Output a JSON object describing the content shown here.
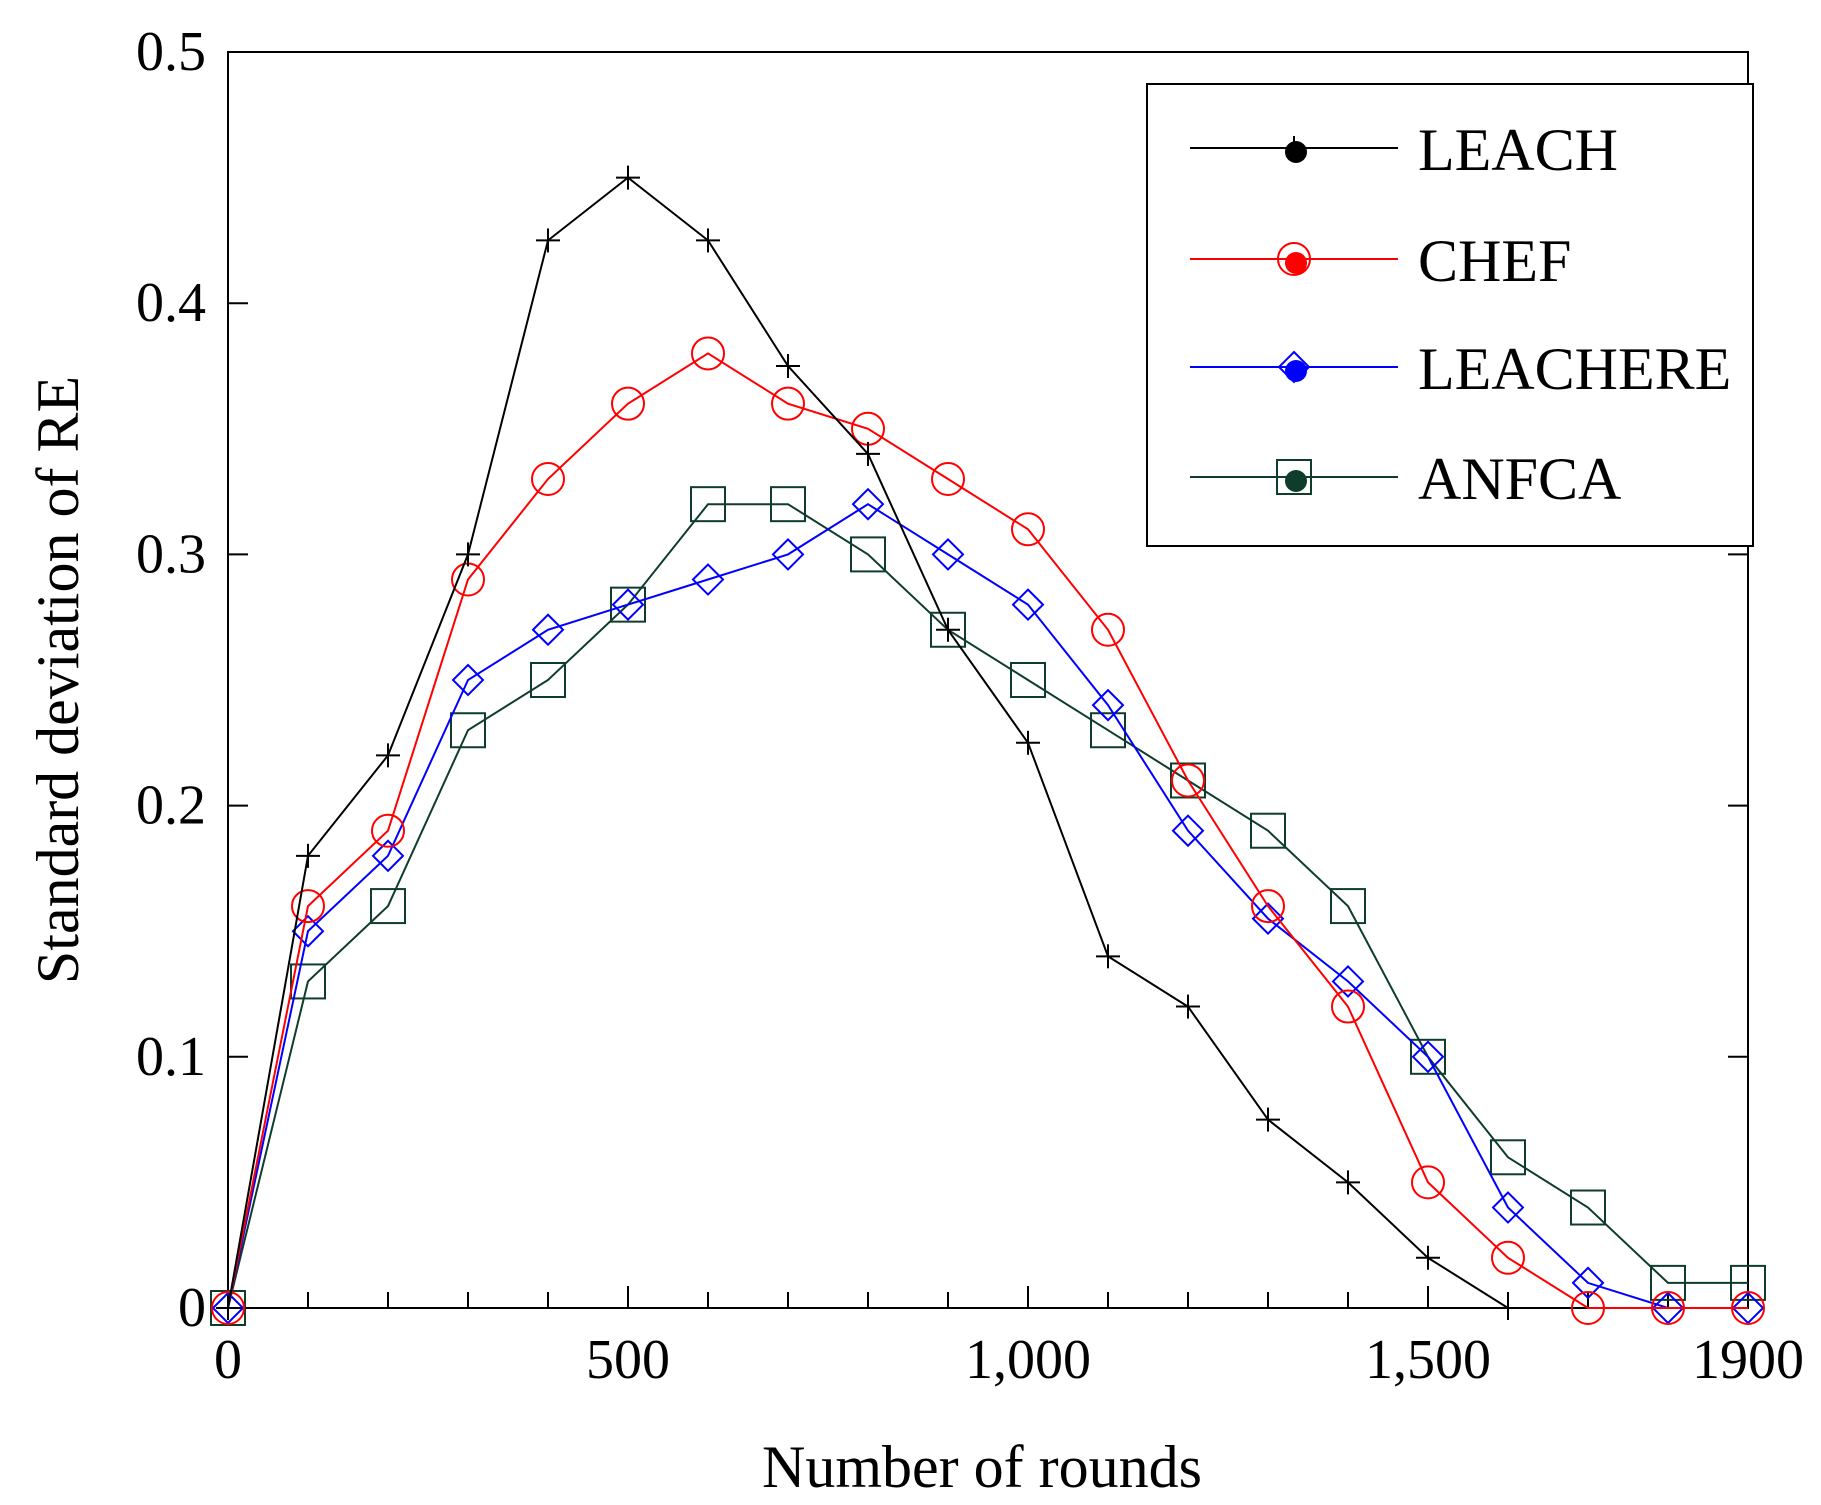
{
  "chart_data": {
    "type": "line",
    "title": "",
    "xlabel": "Number of rounds",
    "ylabel": "Standard deviation of RE",
    "xlim": [
      0,
      1900
    ],
    "ylim": [
      0,
      0.5
    ],
    "x_ticks": [
      0,
      500,
      1000,
      1500,
      1900
    ],
    "x_tick_labels": [
      "0",
      "500",
      "1,000",
      "1,500",
      "1900"
    ],
    "y_ticks": [
      0,
      0.1,
      0.2,
      0.3,
      0.4,
      0.5
    ],
    "y_tick_labels": [
      "0",
      "0.1",
      "0.2",
      "0.3",
      "0.4",
      "0.5"
    ],
    "legend_position": "top-right",
    "grid": false,
    "series": [
      {
        "name": "LEACH",
        "color": "#000000",
        "marker": "plus",
        "x": [
          0,
          100,
          200,
          300,
          400,
          500,
          600,
          700,
          800,
          900,
          1000,
          1100,
          1200,
          1300,
          1400,
          1500,
          1600
        ],
        "values": [
          0,
          0.18,
          0.22,
          0.3,
          0.425,
          0.45,
          0.425,
          0.375,
          0.34,
          0.27,
          0.225,
          0.14,
          0.12,
          0.075,
          0.05,
          0.02,
          0
        ]
      },
      {
        "name": "CHEF",
        "color": "#ff0000",
        "marker": "circle",
        "x": [
          0,
          100,
          200,
          300,
          400,
          500,
          600,
          700,
          800,
          900,
          1000,
          1100,
          1200,
          1300,
          1400,
          1500,
          1600,
          1700,
          1800,
          1900
        ],
        "values": [
          0,
          0.16,
          0.19,
          0.29,
          0.33,
          0.36,
          0.38,
          0.36,
          0.35,
          0.33,
          0.31,
          0.27,
          0.21,
          0.16,
          0.12,
          0.05,
          0.02,
          0,
          0,
          0
        ]
      },
      {
        "name": "LEACHERE",
        "color": "#0000ff",
        "marker": "diamond",
        "x": [
          0,
          100,
          200,
          300,
          400,
          500,
          600,
          700,
          800,
          900,
          1000,
          1100,
          1200,
          1300,
          1400,
          1500,
          1600,
          1700,
          1800,
          1900
        ],
        "values": [
          0,
          0.15,
          0.18,
          0.25,
          0.27,
          0.28,
          0.29,
          0.3,
          0.32,
          0.3,
          0.28,
          0.24,
          0.19,
          0.155,
          0.13,
          0.1,
          0.04,
          0.01,
          0,
          0
        ]
      },
      {
        "name": "ANFCA",
        "color": "#0f3d2b",
        "marker": "square",
        "x": [
          0,
          100,
          200,
          300,
          400,
          500,
          600,
          700,
          800,
          900,
          1000,
          1100,
          1200,
          1300,
          1400,
          1500,
          1600,
          1700,
          1800,
          1900
        ],
        "values": [
          0,
          0.13,
          0.16,
          0.23,
          0.25,
          0.28,
          0.32,
          0.32,
          0.3,
          0.27,
          0.25,
          0.23,
          0.21,
          0.19,
          0.16,
          0.1,
          0.06,
          0.04,
          0.01,
          0.01
        ]
      }
    ]
  }
}
